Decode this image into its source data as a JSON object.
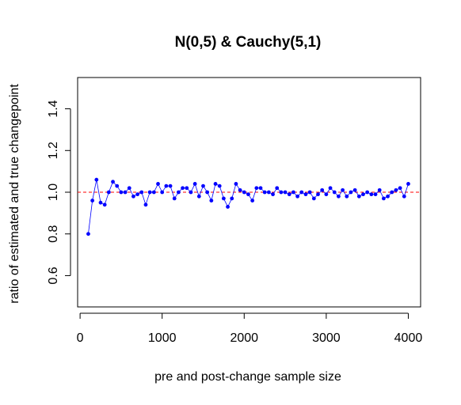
{
  "chart_data": {
    "type": "scatter",
    "title": "N(0,5) & Cauchy(5,1)",
    "xlabel": "pre and post-change sample size",
    "ylabel": "ratio of estimated and true changepoint",
    "xlim": [
      -30,
      4150
    ],
    "ylim": [
      0.45,
      1.55
    ],
    "xticks": [
      0,
      1000,
      2000,
      3000,
      4000
    ],
    "yticks": [
      0.6,
      0.8,
      1.0,
      1.2,
      1.4
    ],
    "xtick_labels": [
      "0",
      "1000",
      "2000",
      "3000",
      "4000"
    ],
    "ytick_labels": [
      "0.6",
      "0.8",
      "1.0",
      "1.2",
      "1.4"
    ],
    "grid": false,
    "reference_line": {
      "y": 1.0,
      "color": "#ff0000",
      "style": "dashed"
    },
    "point_color": "#0000ff",
    "line_color": "#0000ff",
    "series": [
      {
        "x": [
          100,
          150,
          200,
          250,
          300,
          350,
          400,
          450,
          500,
          550,
          600,
          650,
          700,
          750,
          800,
          850,
          900,
          950,
          1000,
          1050,
          1100,
          1150,
          1200,
          1250,
          1300,
          1350,
          1400,
          1450,
          1500,
          1550,
          1600,
          1650,
          1700,
          1750,
          1800,
          1850,
          1900,
          1950,
          2000,
          2050,
          2100,
          2150,
          2200,
          2250,
          2300,
          2350,
          2400,
          2450,
          2500,
          2550,
          2600,
          2650,
          2700,
          2750,
          2800,
          2850,
          2900,
          2950,
          3000,
          3050,
          3100,
          3150,
          3200,
          3250,
          3300,
          3350,
          3400,
          3450,
          3500,
          3550,
          3600,
          3650,
          3700,
          3750,
          3800,
          3850,
          3900,
          3950,
          4000
        ],
        "y": [
          0.8,
          0.96,
          1.06,
          0.95,
          0.94,
          1.0,
          1.05,
          1.03,
          1.0,
          1.0,
          1.02,
          0.98,
          0.99,
          1.0,
          0.94,
          1.0,
          1.0,
          1.04,
          1.0,
          1.03,
          1.03,
          0.97,
          1.0,
          1.02,
          1.02,
          1.0,
          1.04,
          0.98,
          1.03,
          1.0,
          0.96,
          1.04,
          1.03,
          0.97,
          0.93,
          0.97,
          1.04,
          1.01,
          1.0,
          0.99,
          0.96,
          1.02,
          1.02,
          1.0,
          1.0,
          0.99,
          1.02,
          1.0,
          1.0,
          0.99,
          1.0,
          0.98,
          1.0,
          0.99,
          1.0,
          0.97,
          0.99,
          1.01,
          0.99,
          1.02,
          1.0,
          0.98,
          1.01,
          0.98,
          1.0,
          1.01,
          0.98,
          0.99,
          1.0,
          0.99,
          0.99,
          1.01,
          0.97,
          0.98,
          1.0,
          1.01,
          1.02,
          0.98,
          1.04
        ]
      }
    ]
  }
}
